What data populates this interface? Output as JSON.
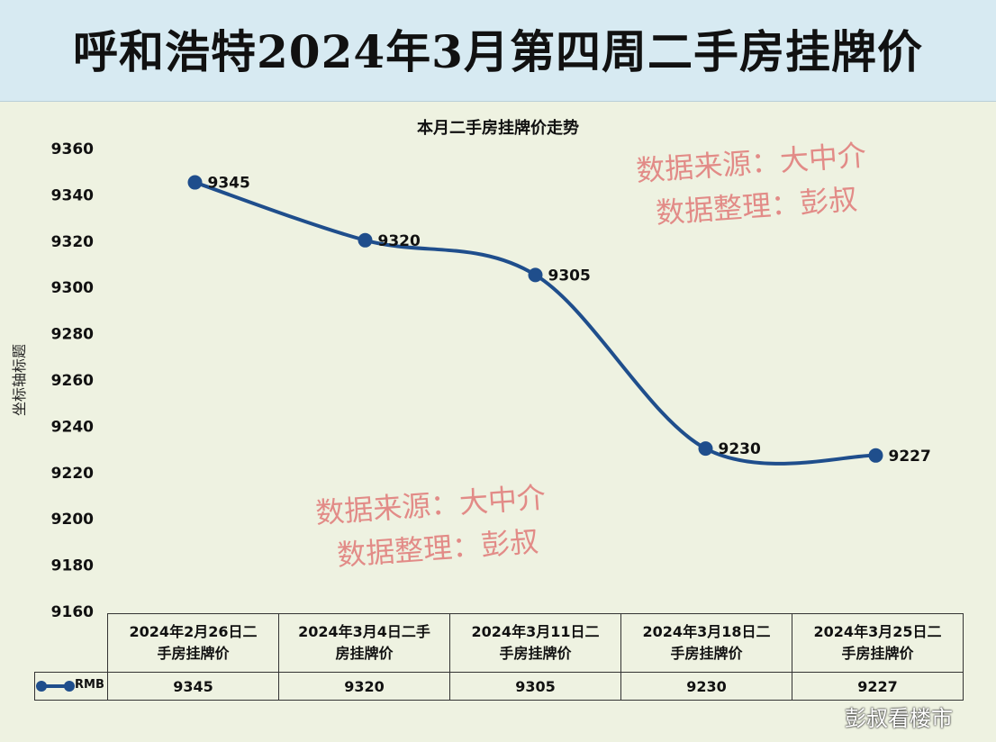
{
  "page_title": "呼和浩特2024年3月第四周二手房挂牌价",
  "watermark_lines": [
    "数据来源：大中介",
    "数据整理：彭叔"
  ],
  "footer_mark": "彭叔看楼市",
  "colors": {
    "line": "#1f4e8c",
    "title_band": "#d7eaf2",
    "background": "#eef2e1",
    "watermark": "#e07a78"
  },
  "chart_data": {
    "type": "line",
    "title": "本月二手房挂牌价走势",
    "ylabel": "坐标轴标题",
    "ylim": [
      9160,
      9360
    ],
    "yticks": [
      9360,
      9340,
      9320,
      9300,
      9280,
      9260,
      9240,
      9220,
      9200,
      9180,
      9160
    ],
    "categories": [
      "2024年2月26日二手房挂牌价",
      "2024年3月4日二手房挂牌价",
      "2024年3月11日二手房挂牌价",
      "2024年3月18日二手房挂牌价",
      "2024年3月25日二手房挂牌价"
    ],
    "category_lines": [
      [
        "2024年2月26日二",
        "手房挂牌价"
      ],
      [
        "2024年3月4日二手",
        "房挂牌价"
      ],
      [
        "2024年3月11日二",
        "手房挂牌价"
      ],
      [
        "2024年3月18日二",
        "手房挂牌价"
      ],
      [
        "2024年3月25日二",
        "手房挂牌价"
      ]
    ],
    "series": [
      {
        "name": "RMB",
        "values": [
          9345,
          9320,
          9305,
          9230,
          9227
        ]
      }
    ],
    "data_labels": true,
    "grid": false,
    "legend": "data-table"
  }
}
